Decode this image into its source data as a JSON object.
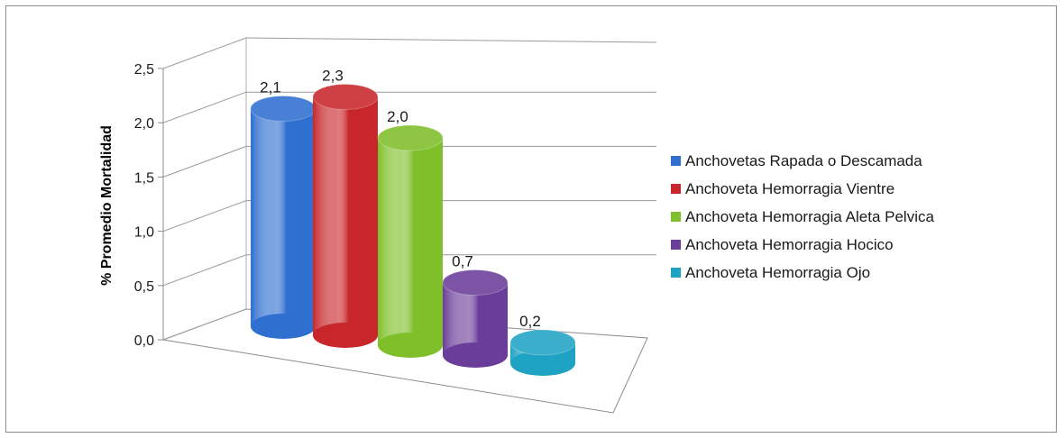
{
  "chart_data": {
    "type": "bar",
    "style": "3d-cylinder",
    "ylabel": "% Promedio Mortalidad",
    "ylim": [
      0,
      2.5
    ],
    "yticks": [
      "0,0",
      "0,5",
      "1,0",
      "1,5",
      "2,0",
      "2,5"
    ],
    "grid": true,
    "legend_position": "right",
    "series": [
      {
        "name": "Anchovetas Rapada o Descamada",
        "value": 2.1,
        "label": "2,1",
        "color": "#2e6fd0"
      },
      {
        "name": "Anchoveta Hemorragia Vientre",
        "value": 2.3,
        "label": "2,3",
        "color": "#c8262a"
      },
      {
        "name": "Anchoveta Hemorragia Aleta Pelvica",
        "value": 2.0,
        "label": "2,0",
        "color": "#7fbf2a"
      },
      {
        "name": "Anchoveta Hemorragia Hocico",
        "value": 0.7,
        "label": "0,7",
        "color": "#6a3d9a"
      },
      {
        "name": "Anchoveta Hemorragia Ojo",
        "value": 0.2,
        "label": "0,2",
        "color": "#1fa3c4"
      }
    ]
  }
}
